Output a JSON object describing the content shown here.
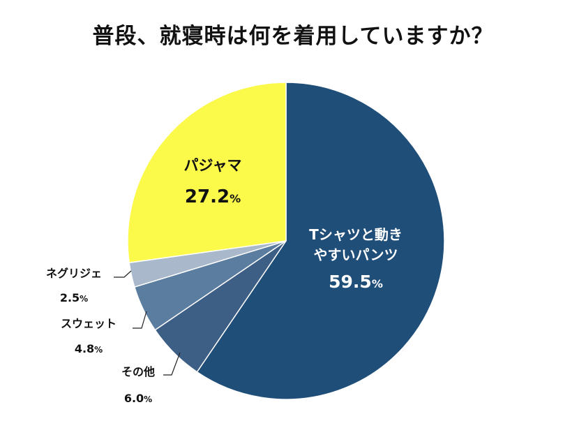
{
  "title": "普段、就寝時は何を着用していますか？",
  "chart_data": {
    "type": "pie",
    "title": "普段、就寝時は何を着用していますか？",
    "slices": [
      {
        "label_lines": [
          "Tシャツと動き",
          "やすいパンツ"
        ],
        "value": 59.5,
        "value_label": "59.5%",
        "color": "#1f4e79"
      },
      {
        "label_lines": [
          "その他"
        ],
        "value": 6.0,
        "value_label": "6.0%",
        "color": "#3d5f86"
      },
      {
        "label_lines": [
          "スウェット"
        ],
        "value": 4.8,
        "value_label": "4.8%",
        "color": "#5a7da0"
      },
      {
        "label_lines": [
          "ネグリジェ"
        ],
        "value": 2.5,
        "value_label": "2.5%",
        "color": "#a9b9cb"
      },
      {
        "label_lines": [
          "パジャマ"
        ],
        "value": 27.2,
        "value_label": "27.2%",
        "color": "#fbf94a"
      }
    ]
  }
}
